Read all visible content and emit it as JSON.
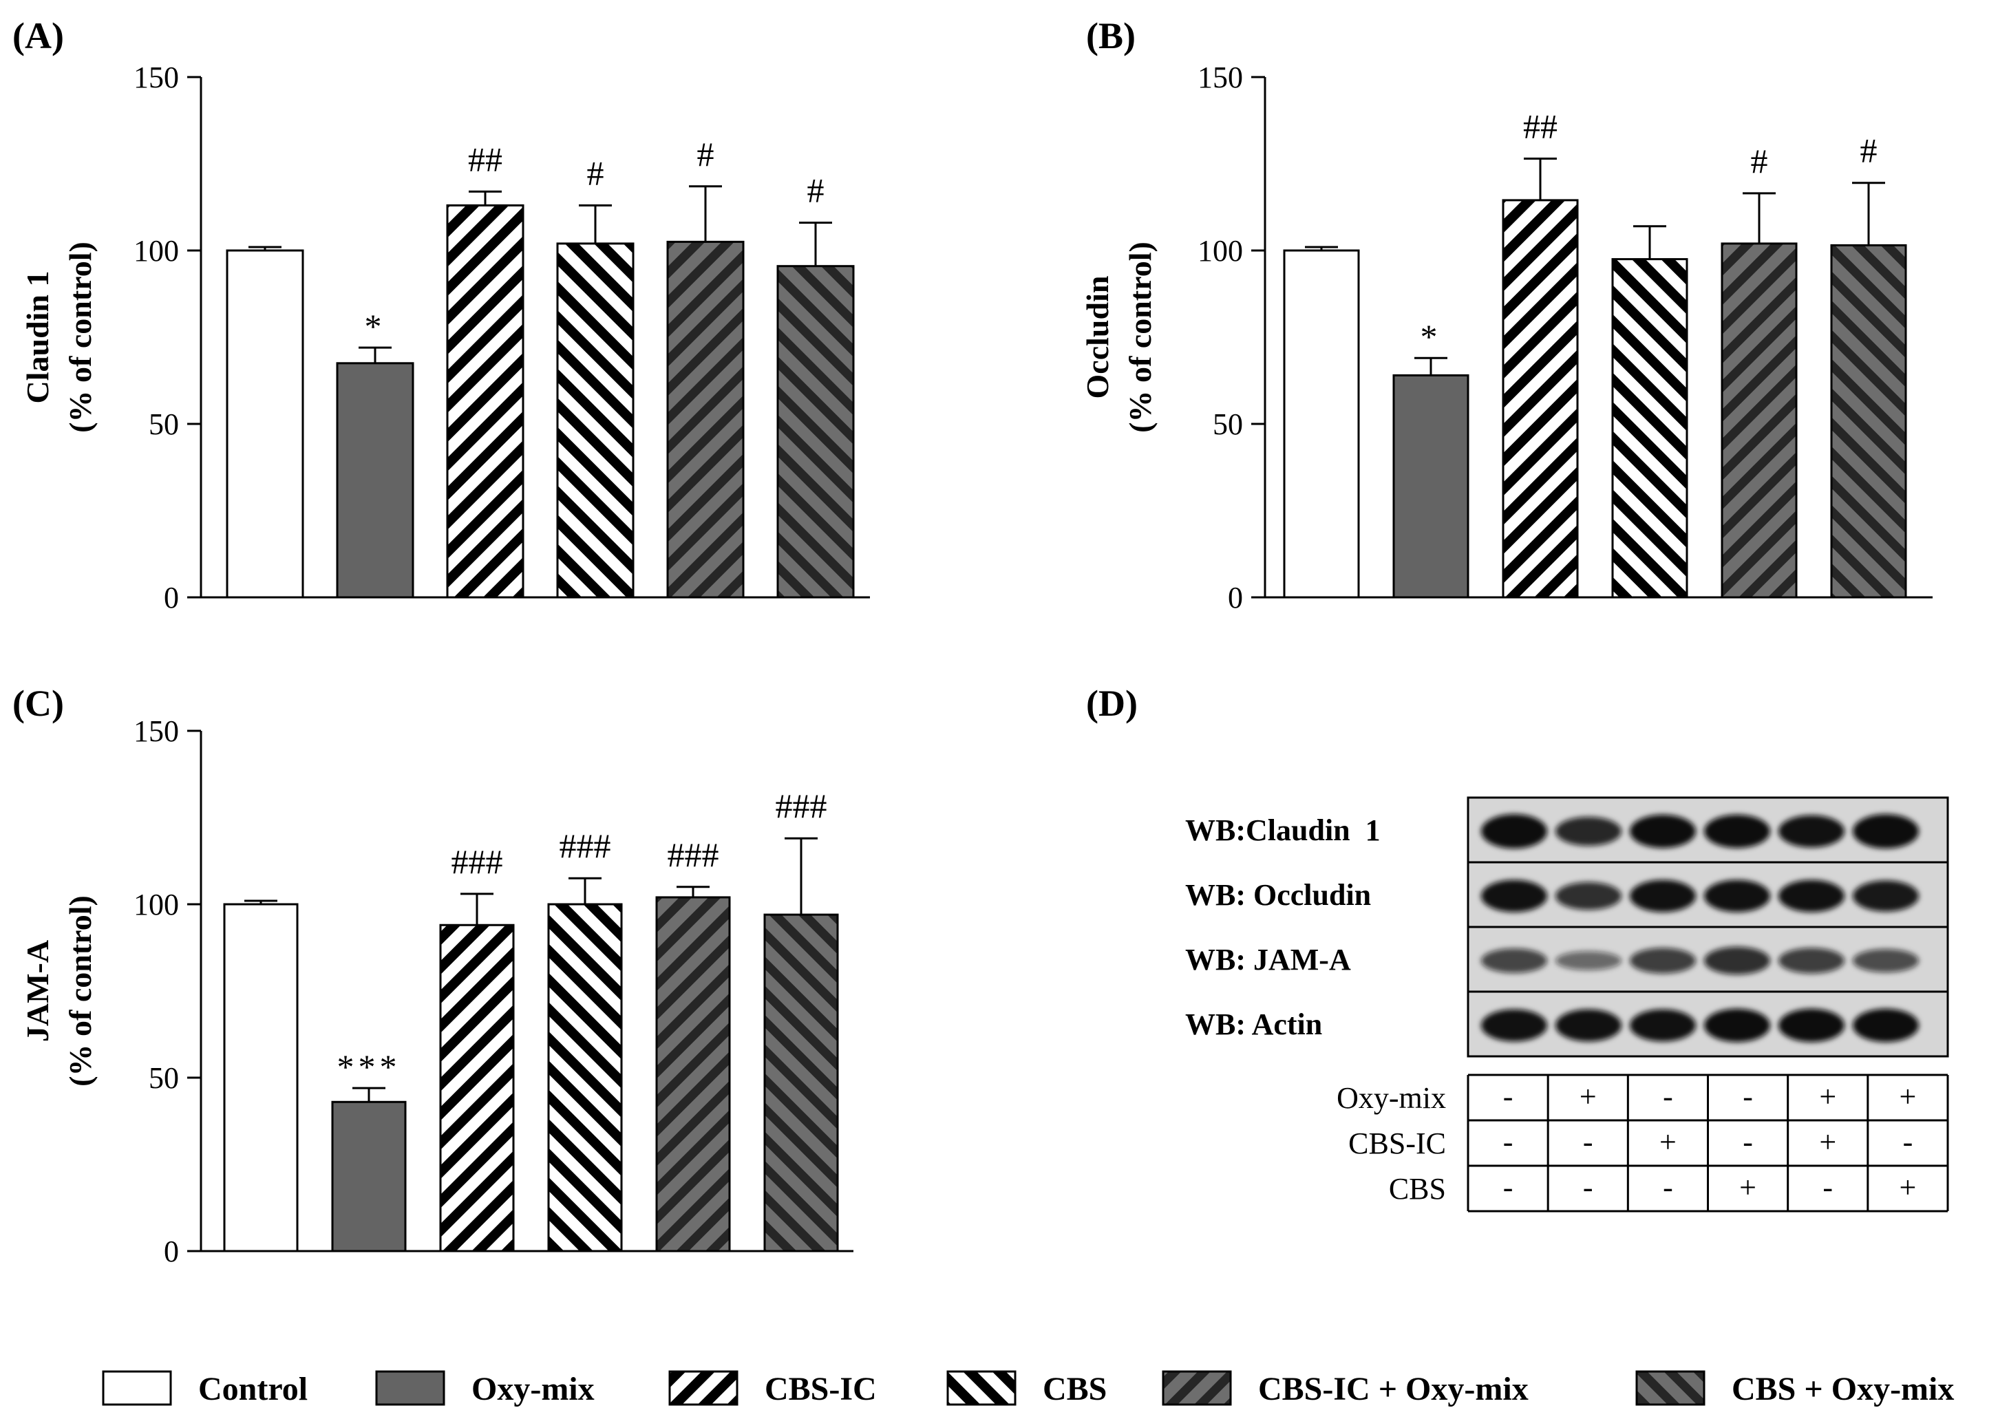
{
  "chart_data": [
    {
      "type": "bar",
      "panel": "(A)",
      "ylabel_line1": "Claudin 1",
      "ylabel_line2": "(% of control)",
      "ylim": [
        0,
        150
      ],
      "yticks": [
        "0",
        "50",
        "100",
        "150"
      ],
      "categories": [
        "Control",
        "Oxy-mix",
        "CBS-IC",
        "CBS",
        "CBS-IC + Oxy-mix",
        "CBS + Oxy-mix"
      ],
      "values": [
        100,
        67.5,
        113,
        102,
        102.5,
        95.5
      ],
      "errors": [
        1,
        4.5,
        4,
        11,
        16,
        12.5
      ],
      "annotations": [
        "",
        "*",
        "##",
        "#",
        "#",
        "#"
      ]
    },
    {
      "type": "bar",
      "panel": "(B)",
      "ylabel_line1": "Occludin",
      "ylabel_line2": "(% of control)",
      "ylim": [
        0,
        150
      ],
      "yticks": [
        "0",
        "50",
        "100",
        "150"
      ],
      "categories": [
        "Control",
        "Oxy-mix",
        "CBS-IC",
        "CBS",
        "CBS-IC + Oxy-mix",
        "CBS + Oxy-mix"
      ],
      "values": [
        100,
        64,
        114.5,
        97.5,
        102,
        101.5
      ],
      "errors": [
        1,
        5,
        12,
        9.5,
        14.5,
        18
      ],
      "annotations": [
        "",
        "*",
        "##",
        "",
        "#",
        "#"
      ]
    },
    {
      "type": "bar",
      "panel": "(C)",
      "ylabel_line1": "JAM-A",
      "ylabel_line2": "(% of control)",
      "ylim": [
        0,
        150
      ],
      "yticks": [
        "0",
        "50",
        "100",
        "150"
      ],
      "categories": [
        "Control",
        "Oxy-mix",
        "CBS-IC",
        "CBS",
        "CBS-IC + Oxy-mix",
        "CBS + Oxy-mix"
      ],
      "values": [
        100,
        43,
        94,
        100,
        102,
        97
      ],
      "errors": [
        1,
        4,
        9,
        7.5,
        3,
        22
      ],
      "annotations": [
        "",
        "***",
        "###",
        "###",
        "###",
        "###"
      ]
    }
  ],
  "panel_d": {
    "panel": "(D)",
    "blot_rows": [
      "WB:Claudin  1",
      "WB: Occludin",
      "WB: JAM-A",
      "WB: Actin"
    ],
    "band_intensity": [
      [
        1.0,
        0.75,
        0.95,
        0.95,
        0.9,
        1.0
      ],
      [
        0.9,
        0.7,
        0.9,
        0.9,
        0.9,
        0.85
      ],
      [
        0.55,
        0.3,
        0.6,
        0.7,
        0.6,
        0.5
      ],
      [
        0.9,
        0.9,
        0.9,
        0.95,
        0.95,
        0.95
      ]
    ],
    "treatment_rows": [
      {
        "label": "Oxy-mix",
        "cells": [
          "-",
          "+",
          "-",
          "-",
          "+",
          "+"
        ]
      },
      {
        "label": "CBS-IC",
        "cells": [
          "-",
          "-",
          "+",
          "-",
          "+",
          "-"
        ]
      },
      {
        "label": "CBS",
        "cells": [
          "-",
          "-",
          "-",
          "+",
          "-",
          "+"
        ]
      }
    ]
  },
  "legend": [
    {
      "label": "Control",
      "pattern": "open"
    },
    {
      "label": "Oxy-mix",
      "pattern": "gray"
    },
    {
      "label": "CBS-IC",
      "pattern": "stripe-up"
    },
    {
      "label": "CBS",
      "pattern": "stripe-down"
    },
    {
      "label": "CBS-IC + Oxy-mix",
      "pattern": "gray-stripe-up"
    },
    {
      "label": "CBS + Oxy-mix",
      "pattern": "gray-stripe-down"
    }
  ],
  "colors": {
    "bar_gray": "#646464",
    "stripe_dark": "#2b2b2b",
    "blot_bg": "#d6d6d6",
    "band": "#0c0c0c"
  }
}
